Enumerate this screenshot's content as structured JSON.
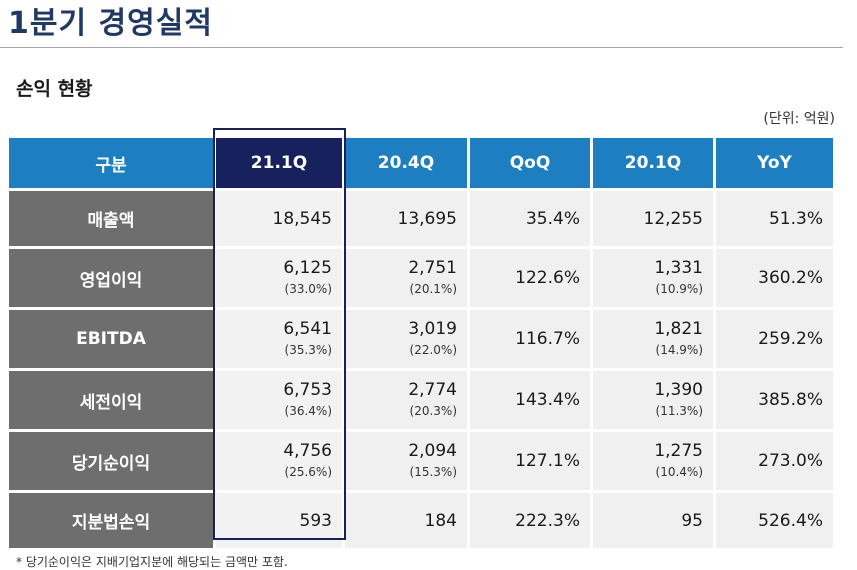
{
  "title": "1분기 경영실적",
  "section": "손익 현황",
  "unit": "(단위: 억원)",
  "headers": [
    "구분",
    "21.1Q",
    "20.4Q",
    "QoQ",
    "20.1Q",
    "YoY"
  ],
  "rows": [
    {
      "label": "매출액",
      "q211": "18,545",
      "q211_pct": "",
      "q204": "13,695",
      "q204_pct": "",
      "qoq": "35.4%",
      "q201": "12,255",
      "q201_pct": "",
      "yoy": "51.3%"
    },
    {
      "label": "영업이익",
      "q211": "6,125",
      "q211_pct": "(33.0%)",
      "q204": "2,751",
      "q204_pct": "(20.1%)",
      "qoq": "122.6%",
      "q201": "1,331",
      "q201_pct": "(10.9%)",
      "yoy": "360.2%"
    },
    {
      "label": "EBITDA",
      "q211": "6,541",
      "q211_pct": "(35.3%)",
      "q204": "3,019",
      "q204_pct": "(22.0%)",
      "qoq": "116.7%",
      "q201": "1,821",
      "q201_pct": "(14.9%)",
      "yoy": "259.2%"
    },
    {
      "label": "세전이익",
      "q211": "6,753",
      "q211_pct": "(36.4%)",
      "q204": "2,774",
      "q204_pct": "(20.3%)",
      "qoq": "143.4%",
      "q201": "1,390",
      "q201_pct": "(11.3%)",
      "yoy": "385.8%"
    },
    {
      "label": "당기순이익",
      "q211": "4,756",
      "q211_pct": "(25.6%)",
      "q204": "2,094",
      "q204_pct": "(15.3%)",
      "qoq": "127.1%",
      "q201": "1,275",
      "q201_pct": "(10.4%)",
      "yoy": "273.0%"
    },
    {
      "label": "지분법손익",
      "q211": "593",
      "q211_pct": "",
      "q204": "184",
      "q204_pct": "",
      "qoq": "222.3%",
      "q201": "95",
      "q201_pct": "",
      "yoy": "526.4%"
    }
  ],
  "footnote": "* 당기순이익은 지배기업지분에 해당되는 금액만 포함.",
  "colors": {
    "title": "#1f3864",
    "header": "#1d7fc2",
    "header_highlight": "#17215e",
    "label_bg": "#6e6e6e",
    "cell_bg": "#f0f0f0"
  }
}
